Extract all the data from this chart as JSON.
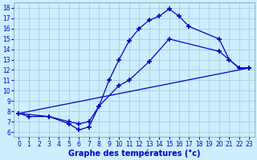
{
  "title": "Graphe des températures (°c)",
  "bg_color": "#cceeff",
  "grid_color": "#aaccdd",
  "line_color": "#0000cc",
  "xlim": [
    -0.5,
    23.5
  ],
  "ylim": [
    5.5,
    18.5
  ],
  "xticks": [
    0,
    1,
    2,
    3,
    4,
    5,
    6,
    7,
    8,
    9,
    10,
    11,
    12,
    13,
    14,
    15,
    16,
    17,
    18,
    19,
    20,
    21,
    22,
    23
  ],
  "yticks": [
    6,
    7,
    8,
    9,
    10,
    11,
    12,
    13,
    14,
    15,
    16,
    17,
    18
  ],
  "line1_x": [
    0,
    1,
    3,
    5,
    6,
    7,
    8,
    9,
    10,
    11,
    12,
    13,
    14,
    15,
    16,
    17,
    20,
    21,
    22,
    23
  ],
  "line1_y": [
    7.8,
    7.5,
    7.5,
    6.8,
    6.2,
    6.5,
    8.5,
    11.0,
    13.0,
    14.8,
    16.0,
    16.8,
    17.2,
    17.9,
    17.2,
    16.2,
    15.0,
    13.0,
    12.2,
    12.2
  ],
  "line2_x": [
    0,
    3,
    5,
    6,
    7,
    8,
    10,
    11,
    13,
    15,
    20,
    22,
    23
  ],
  "line2_y": [
    7.8,
    7.5,
    7.0,
    6.8,
    7.0,
    8.5,
    10.5,
    11.0,
    12.8,
    15.0,
    13.8,
    12.2,
    12.2
  ],
  "line3_x": [
    0,
    23
  ],
  "line3_y": [
    7.8,
    12.2
  ],
  "xlabel_fontsize": 7,
  "tick_fontsize": 5.5
}
